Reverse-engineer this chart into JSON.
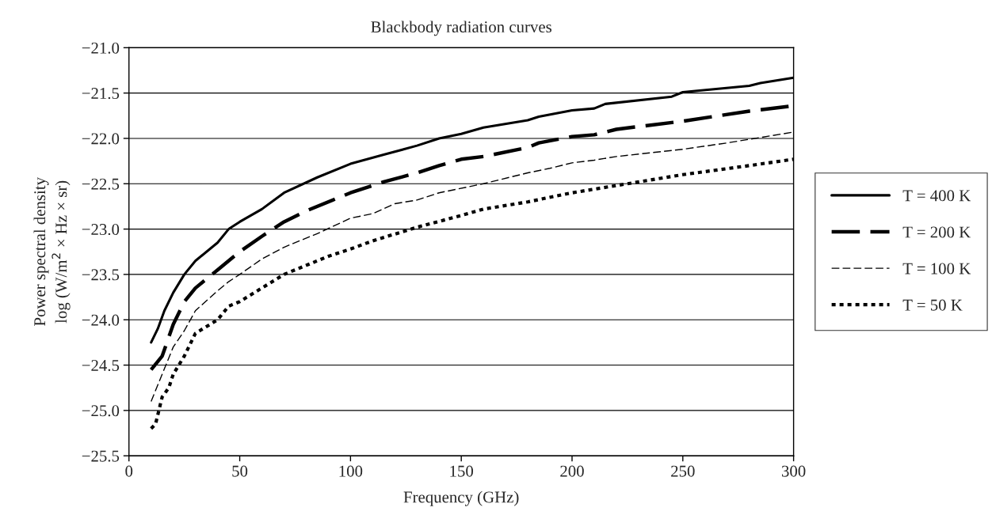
{
  "chart_data": {
    "type": "line",
    "title": "Blackbody radiation curves",
    "xlabel": "Frequency (GHz)",
    "ylabel": "Power spectral density\nlog (W/m$^{2}$ × Hz × sr)",
    "xlim": [
      0,
      300
    ],
    "xticks": [
      0,
      50,
      100,
      150,
      200,
      250,
      300
    ],
    "ylim": [
      -25.5,
      -21.0
    ],
    "yticks": [
      {
        "value": -25.5,
        "label": "−25.5"
      },
      {
        "value": -25.0,
        "label": "−25.0"
      },
      {
        "value": -24.5,
        "label": "−24.5"
      },
      {
        "value": -24.0,
        "label": "−24.0"
      },
      {
        "value": -23.5,
        "label": "−23.5"
      },
      {
        "value": -23.0,
        "label": "−23.0"
      },
      {
        "value": -22.5,
        "label": "−22.5"
      },
      {
        "value": -22.0,
        "label": "−22.0"
      },
      {
        "value": -21.5,
        "label": "−21.5"
      },
      {
        "value": -21.0,
        "label": "−21.0"
      }
    ],
    "grid": "y",
    "legend": "right",
    "marker": "none",
    "series": [
      {
        "name": "T = 400 K",
        "color": "#000000",
        "line_style": "solid",
        "x": [
          10,
          13,
          16,
          20,
          25,
          30,
          40,
          45,
          50,
          60,
          70,
          85,
          100,
          115,
          130,
          140,
          150,
          160,
          180,
          185,
          200,
          210,
          215,
          245,
          250,
          280,
          285,
          300
        ],
        "values": [
          -24.25,
          -24.1,
          -23.9,
          -23.7,
          -23.5,
          -23.35,
          -23.15,
          -23.0,
          -22.92,
          -22.78,
          -22.6,
          -22.43,
          -22.28,
          -22.18,
          -22.08,
          -22.0,
          -21.95,
          -21.88,
          -21.8,
          -21.76,
          -21.69,
          -21.67,
          -21.62,
          -21.54,
          -21.49,
          -21.42,
          -21.39,
          -21.33
        ]
      },
      {
        "name": "T = 200 K",
        "color": "#000000",
        "line_style": "dashed",
        "x": [
          10,
          15,
          20,
          25,
          30,
          40,
          50,
          60,
          70,
          80,
          100,
          115,
          130,
          140,
          150,
          160,
          180,
          185,
          200,
          210,
          220,
          250,
          280,
          300
        ],
        "values": [
          -24.55,
          -24.4,
          -24.05,
          -23.8,
          -23.65,
          -23.45,
          -23.25,
          -23.08,
          -22.92,
          -22.8,
          -22.6,
          -22.48,
          -22.38,
          -22.3,
          -22.23,
          -22.2,
          -22.1,
          -22.05,
          -21.98,
          -21.96,
          -21.9,
          -21.81,
          -21.7,
          -21.64
        ]
      },
      {
        "name": "T = 100 K",
        "color": "#000000",
        "line_style": "dashed",
        "x": [
          10,
          15,
          20,
          25,
          30,
          40,
          45,
          50,
          60,
          70,
          85,
          100,
          110,
          120,
          130,
          140,
          160,
          180,
          190,
          200,
          210,
          220,
          250,
          270,
          300
        ],
        "values": [
          -24.9,
          -24.6,
          -24.3,
          -24.12,
          -23.9,
          -23.68,
          -23.58,
          -23.5,
          -23.33,
          -23.2,
          -23.05,
          -22.88,
          -22.83,
          -22.72,
          -22.68,
          -22.6,
          -22.5,
          -22.38,
          -22.33,
          -22.27,
          -22.24,
          -22.2,
          -22.12,
          -22.05,
          -21.93
        ]
      },
      {
        "name": "T = 50 K",
        "color": "#000000",
        "line_style": "dotted",
        "x": [
          10,
          12,
          15,
          18,
          20,
          25,
          30,
          40,
          45,
          50,
          60,
          70,
          80,
          90,
          100,
          110,
          130,
          150,
          160,
          180,
          200,
          220,
          250,
          280,
          300
        ],
        "values": [
          -25.2,
          -25.15,
          -24.85,
          -24.75,
          -24.6,
          -24.4,
          -24.15,
          -24.0,
          -23.85,
          -23.8,
          -23.65,
          -23.5,
          -23.4,
          -23.3,
          -23.22,
          -23.13,
          -22.98,
          -22.85,
          -22.78,
          -22.7,
          -22.6,
          -22.52,
          -22.4,
          -22.3,
          -22.23
        ]
      }
    ]
  }
}
